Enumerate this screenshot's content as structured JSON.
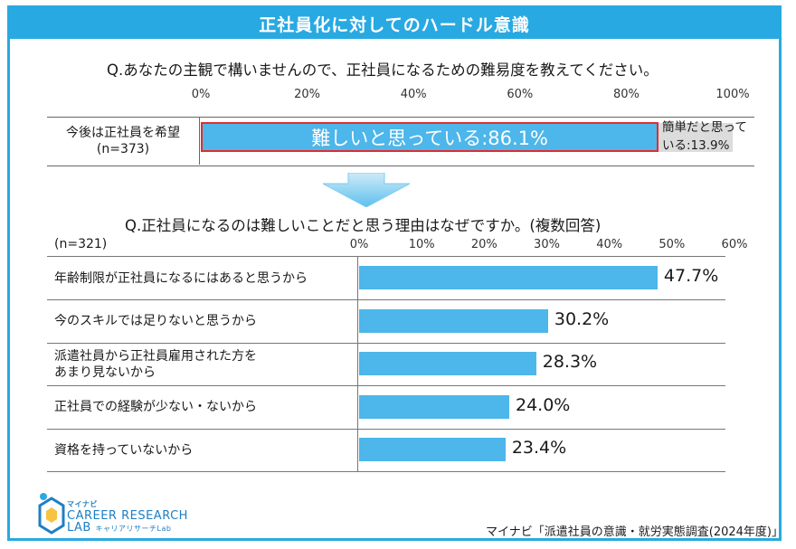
{
  "title": "正社員化に対してのハードル意識",
  "q1": "Q.あなたの主観で構いませんので、正社員になるための難易度を教えてください。",
  "q2": "Q.正社員になるのは難しいことだと思う理由はなぜですか。(複数回答)",
  "top_row": {
    "label_line1": "今後は正社員を希望",
    "label_line2": "(n=373)"
  },
  "chart_data": [
    {
      "type": "bar",
      "orientation": "horizontal-stacked",
      "xlim": [
        0,
        100
      ],
      "ticks": [
        "0%",
        "20%",
        "40%",
        "60%",
        "80%",
        "100%"
      ],
      "tick_values": [
        0,
        20,
        40,
        60,
        80,
        100
      ],
      "series": [
        {
          "name": "難しいと思っている",
          "value": 86.1,
          "label": "難しいと思っている:86.1%"
        },
        {
          "name": "簡単だと思っている",
          "value": 13.9,
          "label_line1": "簡単だと思って",
          "label_line2": "いる:13.9%"
        }
      ]
    },
    {
      "type": "bar",
      "orientation": "horizontal",
      "n_label": "(n=321)",
      "xlim": [
        0,
        60
      ],
      "ticks": [
        "0%",
        "10%",
        "20%",
        "30%",
        "40%",
        "50%",
        "60%"
      ],
      "tick_values": [
        0,
        10,
        20,
        30,
        40,
        50,
        60
      ],
      "categories": [
        {
          "lines": [
            "年齢制限が正社員になるにはあると思うから"
          ],
          "value": 47.7,
          "label": "47.7%"
        },
        {
          "lines": [
            "今のスキルでは足りないと思うから"
          ],
          "value": 30.2,
          "label": "30.2%"
        },
        {
          "lines": [
            "派遣社員から正社員雇用された方を",
            "あまり見ないから"
          ],
          "value": 28.3,
          "label": "28.3%"
        },
        {
          "lines": [
            "正社員での経験が少ない・ないから"
          ],
          "value": 24.0,
          "label": "24.0%"
        },
        {
          "lines": [
            "資格を持っていないから"
          ],
          "value": 23.4,
          "label": "23.4%"
        }
      ]
    }
  ],
  "logo": {
    "brand": "マイナビ",
    "line1": "CAREER RESEARCH",
    "line2": "LAB",
    "sub": "キャリアリサーチLab"
  },
  "source": "マイナビ「派遣社員の意識・就労実態調査(2024年度)」",
  "colors": {
    "accent": "#29a9e1",
    "bar": "#4db6ea",
    "highlight": "#e32c2c",
    "gray": "#dcdcdc"
  }
}
